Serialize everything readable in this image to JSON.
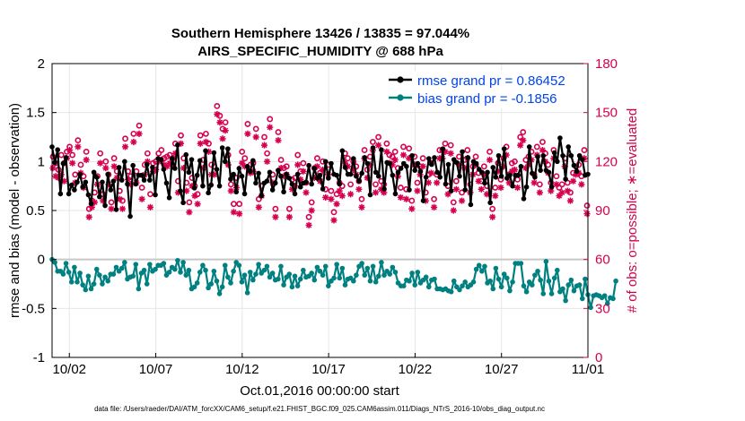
{
  "chart_data": {
    "type": "line",
    "title_line1": "Southern Hemisphere 13426 / 13835 = 97.044%",
    "title_line2": "AIRS_SPECIFIC_HUMIDITY @ 688 hPa",
    "xlabel": "Oct.01,2016 00:00:00 start",
    "ylabel_left": "rmse and bias (model - observation)",
    "ylabel_right": "# of obs: o=possible; ∗=evaluated",
    "footnote": "data file: /Users/raeder/DAI/ATM_forcXX/CAM6_setup/f.e21.FHIST_BGC.f09_025.CAM6assim.011/Diags_NTrS_2016-10/obs_diag_output.nc",
    "xlim": [
      0,
      31
    ],
    "ylim_left": [
      -1,
      2
    ],
    "ylim_right": [
      0,
      180
    ],
    "left_ticks": [
      -1,
      -0.5,
      0,
      0.5,
      1,
      1.5,
      2
    ],
    "left_tick_labels": [
      "-1",
      "-0.5",
      "0",
      "0.5",
      "1",
      "1.5",
      "2"
    ],
    "right_ticks": [
      0,
      30,
      60,
      90,
      120,
      150,
      180
    ],
    "right_tick_labels": [
      "0",
      "30",
      "60",
      "90",
      "120",
      "150",
      "180"
    ],
    "x_ticks": [
      1,
      6,
      11,
      16,
      21,
      26,
      31
    ],
    "x_tick_labels": [
      "10/02",
      "10/07",
      "10/12",
      "10/17",
      "10/22",
      "10/27",
      "11/01"
    ],
    "colors": {
      "rmse": "#000000",
      "bias": "#008080",
      "obs": "#d6004f",
      "legend_text": "#0044ee",
      "zero_line": "#c8c8c8",
      "grid": "#e6e6e6"
    },
    "legend": [
      {
        "name": "rmse",
        "label": "rmse grand pr = 0.86452"
      },
      {
        "name": "bias",
        "label": "bias grand pr = -0.1856"
      }
    ],
    "rmse": [
      1.15,
      0.99,
      1.12,
      0.67,
      0.98,
      1.04,
      0.67,
      0.76,
      0.71,
      0.79,
      0.87,
      0.74,
      0.79,
      0.66,
      0.57,
      0.89,
      0.84,
      0.64,
      0.79,
      0.55,
      0.87,
      0.71,
      0.8,
      0.51,
      0.94,
      0.81,
      1.0,
      0.77,
      0.44,
      0.96,
      0.77,
      0.86,
      0.86,
      0.81,
      0.97,
      0.81,
      0.94,
      0.66,
      1.03,
      1.02,
      0.92,
      0.78,
      0.63,
      1.03,
      0.93,
      1.17,
      0.7,
      0.58,
      1.07,
      0.89,
      1.02,
      0.73,
      0.86,
      1.01,
      0.75,
      1.11,
      0.68,
      0.76,
      1.09,
      0.92,
      0.75,
      1.14,
      1.0,
      1.13,
      0.82,
      0.87,
      0.69,
      0.93,
      0.85,
      0.67,
      0.95,
      0.9,
      1.01,
      0.78,
      0.88,
      0.65,
      0.78,
      0.8,
      0.89,
      0.71,
      0.78,
      0.91,
      0.85,
      0.69,
      0.87,
      0.83,
      0.77,
      0.67,
      0.87,
      0.74,
      0.78,
      0.79,
      0.96,
      0.77,
      0.93,
      0.83,
      0.86,
      0.72,
      1.0,
      0.83,
      0.98,
      0.87,
      0.86,
      0.77,
      1.11,
      0.94,
      0.87,
      0.87,
      1.03,
      0.85,
      0.8,
      0.88,
      1.04,
      0.98,
      0.66,
      1.14,
      0.89,
      0.85,
      1.12,
      0.72,
      0.99,
      0.98,
      0.86,
      0.67,
      0.89,
      0.93,
      0.98,
      0.95,
      0.71,
      1.06,
      0.91,
      0.98,
      0.9,
      0.6,
      0.84,
      1.03,
      0.97,
      1.04,
      0.89,
      0.84,
      1.13,
      0.77,
      0.97,
      0.7,
      1.02,
      0.99,
      0.85,
      1.1,
      0.71,
      1.04,
      0.56,
      1.0,
      0.98,
      0.92,
      0.89,
      0.78,
      0.89,
      0.58,
      0.94,
      0.84,
      1.06,
      0.85,
      1.13,
      0.83,
      0.86,
      0.75,
      0.86,
      0.86,
      0.95,
      0.62,
      0.74,
      1.15,
      0.88,
      0.84,
      1.05,
      0.91,
      1.06,
      0.91,
      0.89,
      0.74,
      1.09,
      1.0,
      1.24,
      1.06,
      0.82,
      1.15,
      1.06,
      0.96,
      0.9,
      1.06,
      1.02,
      0.86,
      0.87
    ],
    "bias": [
      0.0,
      -0.03,
      -0.12,
      -0.12,
      -0.15,
      -0.04,
      -0.13,
      -0.23,
      -0.08,
      -0.23,
      -0.14,
      -0.26,
      -0.31,
      -0.17,
      -0.3,
      -0.25,
      -0.1,
      -0.16,
      -0.25,
      -0.18,
      -0.22,
      -0.15,
      -0.15,
      -0.08,
      -0.12,
      -0.09,
      -0.03,
      -0.2,
      -0.18,
      -0.17,
      -0.05,
      -0.3,
      -0.14,
      -0.11,
      -0.25,
      -0.05,
      -0.12,
      -0.1,
      -0.06,
      -0.06,
      -0.04,
      -0.16,
      -0.13,
      -0.08,
      -0.1,
      -0.01,
      -0.13,
      -0.03,
      -0.16,
      -0.11,
      -0.3,
      -0.28,
      -0.24,
      -0.13,
      -0.06,
      -0.11,
      -0.29,
      -0.25,
      -0.12,
      -0.22,
      -0.35,
      -0.28,
      -0.06,
      -0.18,
      -0.24,
      -0.12,
      -0.03,
      -0.06,
      -0.23,
      -0.16,
      -0.34,
      -0.13,
      -0.21,
      -0.15,
      -0.05,
      -0.14,
      -0.11,
      -0.07,
      -0.18,
      -0.14,
      -0.21,
      -0.2,
      -0.07,
      -0.26,
      -0.18,
      -0.15,
      -0.28,
      -0.17,
      -0.27,
      -0.2,
      -0.11,
      -0.18,
      -0.17,
      -0.14,
      -0.21,
      -0.08,
      -0.12,
      -0.16,
      -0.07,
      -0.27,
      -0.22,
      -0.19,
      -0.05,
      -0.19,
      -0.09,
      -0.26,
      -0.2,
      -0.19,
      -0.22,
      -0.16,
      -0.07,
      -0.04,
      -0.16,
      -0.09,
      -0.22,
      -0.07,
      -0.23,
      -0.17,
      -0.03,
      -0.16,
      -0.12,
      -0.15,
      -0.08,
      -0.13,
      -0.24,
      -0.27,
      -0.27,
      -0.21,
      -0.22,
      -0.14,
      -0.26,
      -0.13,
      -0.24,
      -0.21,
      -0.18,
      -0.28,
      -0.21,
      -0.2,
      -0.3,
      -0.3,
      -0.31,
      -0.3,
      -0.32,
      -0.33,
      -0.22,
      -0.28,
      -0.31,
      -0.27,
      -0.23,
      -0.28,
      -0.26,
      -0.23,
      -0.1,
      -0.06,
      -0.12,
      -0.07,
      -0.24,
      -0.22,
      -0.3,
      -0.09,
      -0.2,
      -0.28,
      -0.15,
      -0.19,
      -0.32,
      -0.23,
      -0.04,
      -0.04,
      -0.04,
      -0.27,
      -0.33,
      -0.23,
      -0.26,
      -0.16,
      -0.12,
      -0.21,
      -0.35,
      -0.02,
      -0.22,
      -0.35,
      -0.19,
      -0.11,
      -0.33,
      -0.3,
      -0.42,
      -0.26,
      -0.21,
      -0.32,
      -0.27,
      -0.26,
      -0.4,
      -0.2,
      -0.36,
      -0.49,
      -0.37,
      -0.36,
      -0.37,
      -0.39,
      -0.37,
      -0.45,
      -0.39,
      -0.4,
      -0.22
    ],
    "obs_possible": [
      123,
      119,
      115,
      124,
      119,
      126,
      129,
      124,
      112,
      133,
      118,
      111,
      126,
      91,
      96,
      101,
      111,
      125,
      100,
      120,
      112,
      95,
      122,
      114,
      102,
      96,
      134,
      114,
      111,
      137,
      114,
      142,
      104,
      118,
      125,
      100,
      119,
      120,
      125,
      127,
      122,
      123,
      124,
      122,
      131,
      108,
      136,
      122,
      107,
      95,
      110,
      105,
      100,
      136,
      121,
      137,
      131,
      118,
      117,
      154,
      148,
      140,
      144,
      124,
      106,
      94,
      110,
      94,
      126,
      122,
      143,
      118,
      119,
      140,
      97,
      105,
      135,
      125,
      146,
      112,
      91,
      138,
      121,
      116,
      117,
      91,
      109,
      110,
      124,
      114,
      119,
      107,
      86,
      95,
      116,
      122,
      113,
      120,
      103,
      118,
      102,
      89,
      100,
      107,
      105,
      125,
      122,
      106,
      120,
      117,
      108,
      97,
      127,
      115,
      123,
      132,
      106,
      135,
      108,
      106,
      131,
      124,
      123,
      126,
      116,
      104,
      129,
      103,
      128,
      96,
      123,
      107,
      117,
      122,
      101,
      112,
      119,
      97,
      112,
      127,
      127,
      131,
      105,
      130,
      95,
      108,
      123,
      101,
      121,
      127,
      106,
      117,
      123,
      113,
      108,
      117,
      105,
      126,
      91,
      104,
      119,
      109,
      122,
      129,
      112,
      119,
      120,
      109,
      135,
      138,
      121,
      123,
      126,
      112,
      129,
      106,
      132,
      125,
      118,
      107,
      127,
      111,
      104,
      106,
      122,
      107,
      101,
      113,
      117,
      118,
      111,
      127,
      93
    ],
    "obs_evaluated": [
      116,
      111,
      110,
      112,
      108,
      122,
      127,
      119,
      107,
      129,
      113,
      104,
      121,
      86,
      92,
      95,
      106,
      119,
      96,
      116,
      106,
      91,
      117,
      110,
      97,
      91,
      129,
      109,
      106,
      132,
      107,
      137,
      97,
      112,
      120,
      92,
      114,
      115,
      120,
      121,
      118,
      117,
      119,
      117,
      125,
      101,
      131,
      116,
      102,
      89,
      105,
      99,
      94,
      131,
      116,
      132,
      126,
      112,
      112,
      149,
      144,
      134,
      139,
      118,
      102,
      89,
      104,
      88,
      119,
      117,
      137,
      113,
      114,
      135,
      92,
      99,
      130,
      120,
      141,
      107,
      86,
      133,
      116,
      111,
      112,
      86,
      103,
      105,
      118,
      109,
      114,
      101,
      81,
      90,
      110,
      117,
      108,
      115,
      98,
      112,
      97,
      84,
      94,
      102,
      99,
      119,
      117,
      100,
      115,
      112,
      103,
      92,
      122,
      110,
      118,
      127,
      101,
      130,
      103,
      101,
      126,
      119,
      118,
      121,
      111,
      98,
      124,
      97,
      122,
      91,
      118,
      102,
      112,
      117,
      96,
      107,
      113,
      92,
      107,
      122,
      122,
      126,
      100,
      125,
      90,
      103,
      118,
      96,
      116,
      122,
      101,
      112,
      118,
      108,
      103,
      112,
      100,
      121,
      86,
      99,
      114,
      104,
      117,
      124,
      107,
      114,
      115,
      104,
      130,
      133,
      116,
      118,
      121,
      107,
      124,
      101,
      127,
      120,
      113,
      102,
      122,
      106,
      99,
      101,
      117,
      102,
      96,
      108,
      112,
      113,
      106,
      122,
      88
    ]
  }
}
